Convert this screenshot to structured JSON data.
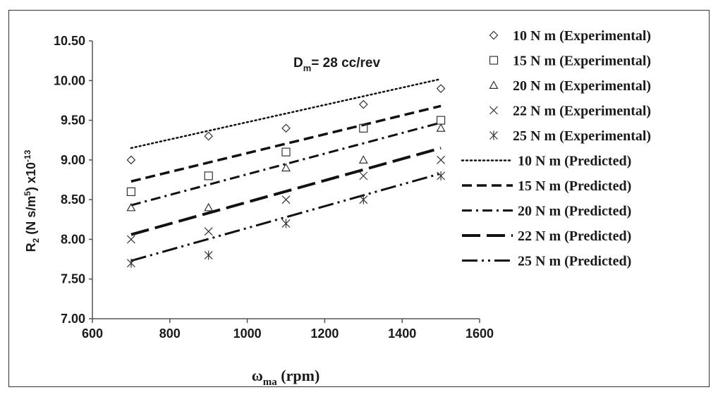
{
  "chart_data": {
    "type": "scatter",
    "annotation": {
      "main": "D",
      "sub": "m",
      "rest": "= 28 cc/rev"
    },
    "xlabel": {
      "main": "ω",
      "sub": "ma",
      "rest": " (rpm)"
    },
    "ylabel": {
      "R": "R",
      "sub2": "2",
      "mid": " (N s/m",
      "sup5": "5",
      "close": ") x10",
      "supexp": "-13"
    },
    "xlim": [
      600,
      1600
    ],
    "ylim": [
      7.0,
      10.5
    ],
    "x_ticks": [
      "600",
      "800",
      "1000",
      "1200",
      "1400",
      "1600"
    ],
    "y_ticks": [
      "7.00",
      "7.50",
      "8.00",
      "8.50",
      "9.00",
      "9.50",
      "10.00",
      "10.50"
    ],
    "x": [
      700,
      900,
      1100,
      1300,
      1500
    ],
    "grid": false,
    "legend_position": "right",
    "experimental": [
      {
        "name": "10 N m (Experimental)",
        "marker": "diamond",
        "values": [
          9.0,
          9.3,
          9.4,
          9.7,
          9.9
        ]
      },
      {
        "name": "15 N m (Experimental)",
        "marker": "square",
        "values": [
          8.6,
          8.8,
          9.1,
          9.4,
          9.5
        ]
      },
      {
        "name": "20 N m (Experimental)",
        "marker": "triangle",
        "values": [
          8.4,
          8.4,
          8.9,
          9.0,
          9.4
        ]
      },
      {
        "name": "22 N m (Experimental)",
        "marker": "x",
        "values": [
          8.0,
          8.1,
          8.5,
          8.8,
          9.0
        ]
      },
      {
        "name": "25 N m (Experimental)",
        "marker": "star",
        "values": [
          7.7,
          7.8,
          8.2,
          8.5,
          8.8
        ]
      }
    ],
    "predicted": [
      {
        "name": "10 N m (Predicted)",
        "style": "dotted",
        "x": [
          700,
          1500
        ],
        "y": [
          9.15,
          10.02
        ]
      },
      {
        "name": "15 N m (Predicted)",
        "style": "dashed",
        "x": [
          700,
          1500
        ],
        "y": [
          8.73,
          9.68
        ]
      },
      {
        "name": "20 N m (Predicted)",
        "style": "dash-dot",
        "x": [
          700,
          1500
        ],
        "y": [
          8.43,
          9.47
        ]
      },
      {
        "name": "22 N m (Predicted)",
        "style": "long-dash",
        "x": [
          700,
          1500
        ],
        "y": [
          8.06,
          9.15
        ]
      },
      {
        "name": "25 N m (Predicted)",
        "style": "long-dash-dot-dot",
        "x": [
          700,
          1500
        ],
        "y": [
          7.73,
          8.83
        ]
      }
    ]
  }
}
